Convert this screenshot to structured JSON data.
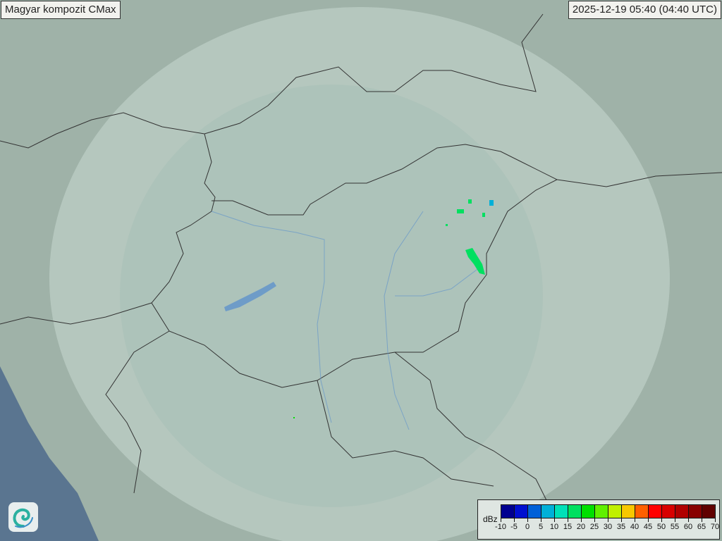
{
  "header": {
    "title": "Magyar kompozit  CMax",
    "timestamp": "2025-12-19 05:40 (04:40 UTC)"
  },
  "legend": {
    "unit": "dBz",
    "ticks": [
      "-10",
      "-5",
      "0",
      "5",
      "10",
      "15",
      "20",
      "25",
      "30",
      "35",
      "40",
      "45",
      "50",
      "55",
      "60",
      "65",
      "70"
    ],
    "colors": [
      "#000090",
      "#0010d0",
      "#0060d8",
      "#00b0d8",
      "#00e0b8",
      "#00e060",
      "#00e000",
      "#60f000",
      "#c0f000",
      "#f8c800",
      "#ff6000",
      "#ff0000",
      "#d80000",
      "#b00000",
      "#880000",
      "#600000"
    ]
  },
  "colors": {
    "land": "#9fb2a8",
    "radar_coverage": "#b9cac3",
    "sea": "#5a7590",
    "border": "#333333",
    "river": "#6e9cc8"
  },
  "logo": {
    "icon": "swirl-logo-icon"
  }
}
